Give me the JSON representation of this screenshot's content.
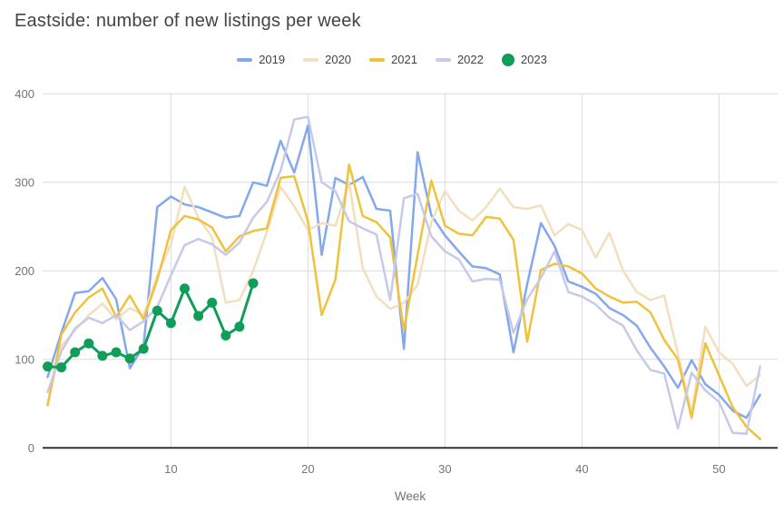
{
  "chart_data": {
    "type": "line",
    "title": "Eastside: number of new listings per week",
    "xlabel": "Week",
    "ylabel": "",
    "xlim": [
      1,
      53
    ],
    "ylim": [
      0,
      400
    ],
    "x_ticks": [
      10,
      20,
      30,
      40,
      50
    ],
    "y_ticks": [
      0,
      100,
      200,
      300,
      400
    ],
    "grid": true,
    "legend_position": "top",
    "x_unit": "week_number",
    "series": [
      {
        "name": "2019",
        "color": "#84a8ec",
        "markers": false,
        "values": [
          80,
          130,
          175,
          177,
          192,
          168,
          90,
          115,
          272,
          284,
          275,
          272,
          266,
          260,
          262,
          300,
          296,
          347,
          311,
          364,
          218,
          305,
          297,
          306,
          270,
          268,
          112,
          334,
          263,
          240,
          222,
          205,
          203,
          196,
          108,
          185,
          254,
          228,
          188,
          182,
          174,
          158,
          150,
          138,
          113,
          92,
          68,
          99,
          72,
          60,
          42,
          34,
          60
        ]
      },
      {
        "name": "2020",
        "color": "#f3dfbe",
        "markers": false,
        "values": [
          50,
          115,
          133,
          150,
          163,
          145,
          158,
          150,
          195,
          230,
          295,
          260,
          238,
          164,
          167,
          200,
          244,
          295,
          273,
          246,
          254,
          251,
          300,
          203,
          171,
          157,
          164,
          184,
          255,
          290,
          268,
          257,
          272,
          293,
          272,
          270,
          274,
          240,
          253,
          246,
          215,
          243,
          200,
          176,
          167,
          172,
          106,
          40,
          137,
          108,
          95,
          70,
          82
        ]
      },
      {
        "name": "2021",
        "color": "#f0c23c",
        "markers": false,
        "values": [
          48,
          128,
          153,
          170,
          180,
          148,
          172,
          145,
          190,
          246,
          262,
          258,
          249,
          222,
          239,
          245,
          248,
          305,
          307,
          256,
          150,
          190,
          320,
          262,
          255,
          238,
          133,
          218,
          302,
          251,
          242,
          240,
          261,
          259,
          235,
          120,
          201,
          208,
          205,
          197,
          180,
          171,
          164,
          165,
          153,
          122,
          100,
          34,
          118,
          82,
          46,
          24,
          10
        ]
      },
      {
        "name": "2022",
        "color": "#c7cae7",
        "markers": false,
        "values": [
          63,
          109,
          135,
          147,
          141,
          150,
          133,
          143,
          159,
          195,
          229,
          236,
          230,
          218,
          232,
          260,
          278,
          313,
          371,
          374,
          300,
          290,
          256,
          248,
          241,
          167,
          282,
          287,
          239,
          222,
          213,
          188,
          191,
          190,
          130,
          168,
          192,
          222,
          176,
          171,
          162,
          147,
          138,
          110,
          88,
          84,
          22,
          85,
          65,
          52,
          17,
          16,
          92
        ]
      },
      {
        "name": "2023",
        "color": "#0f9d58",
        "markers": true,
        "values": [
          92,
          91,
          108,
          118,
          104,
          108,
          101,
          112,
          155,
          141,
          180,
          149,
          164,
          127,
          137,
          186
        ]
      }
    ]
  },
  "style": {
    "gridline_color": "#dadce0",
    "axis_color": "#333333",
    "tick_label_color": "#757575",
    "axis_title_color": "#757575",
    "title_color": "#434343"
  }
}
